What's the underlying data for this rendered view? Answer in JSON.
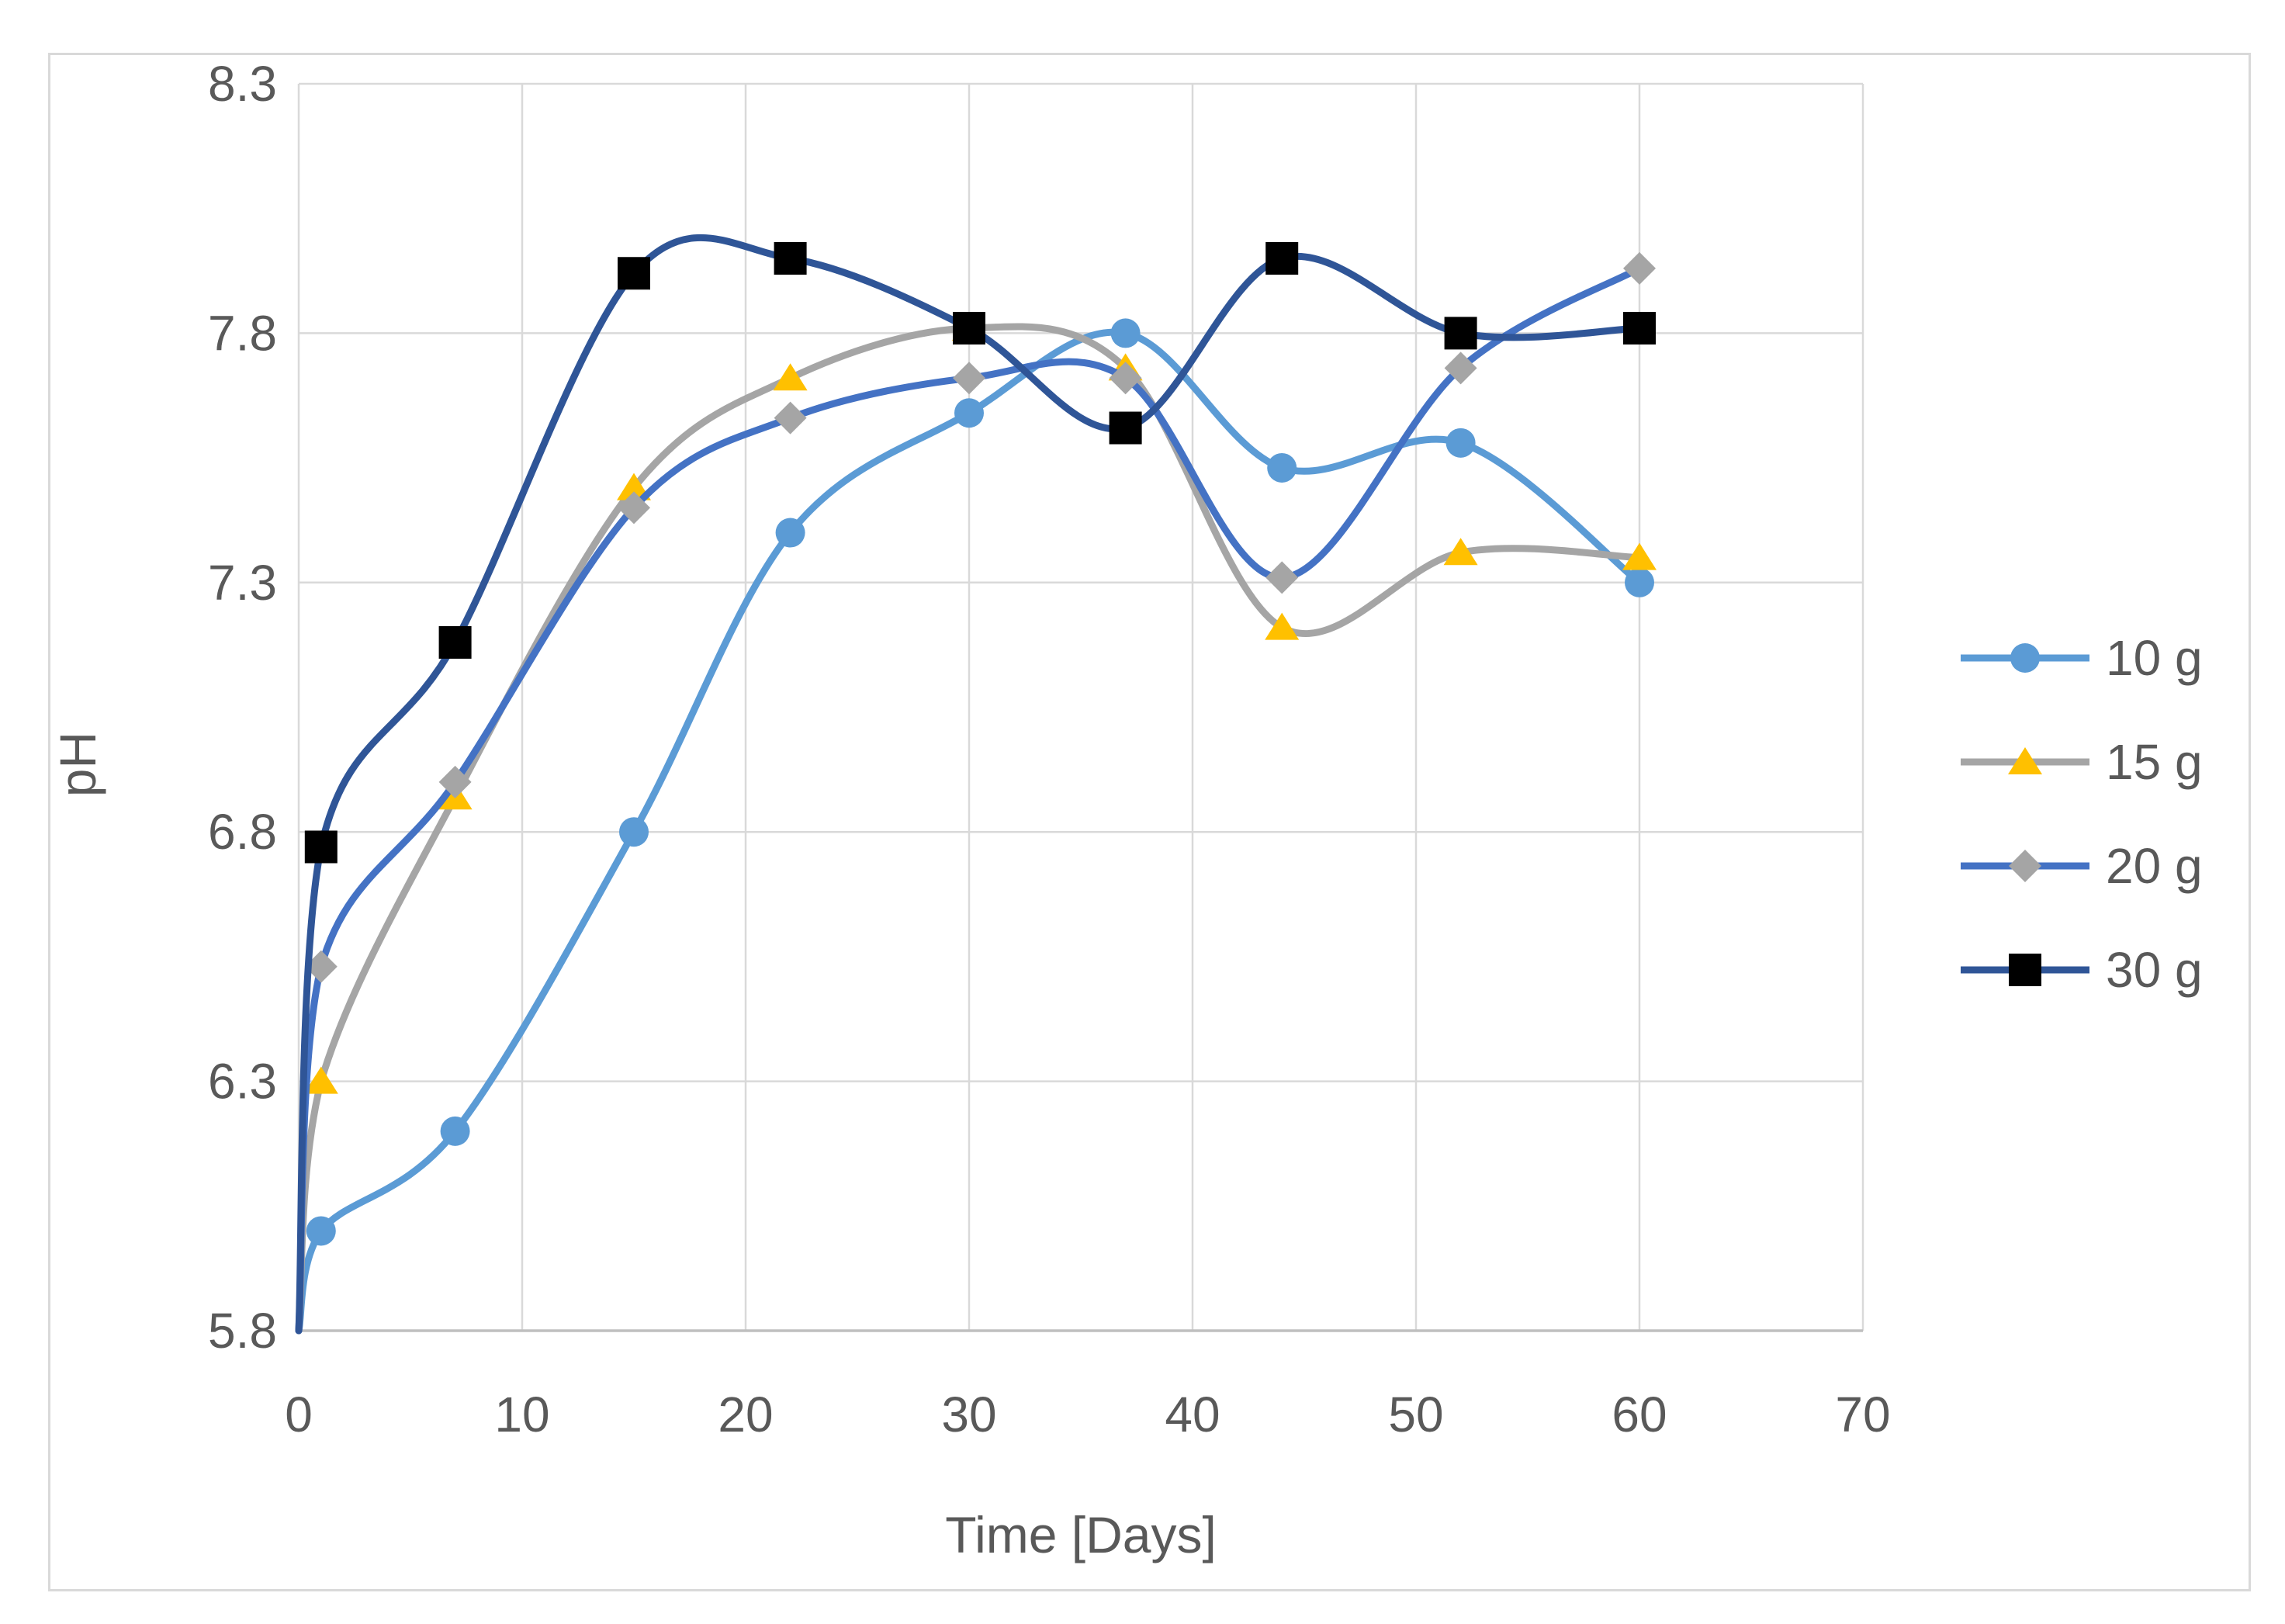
{
  "chart_data": {
    "type": "line",
    "title": "",
    "xlabel": "Time [Days]",
    "ylabel": "pH",
    "x": [
      0,
      1,
      7,
      15,
      22,
      30,
      37,
      44,
      52,
      60
    ],
    "series": [
      {
        "name": "10 g",
        "line_color": "#5B9BD5",
        "marker": "circle",
        "marker_color": "#5B9BD5",
        "values": [
          5.8,
          6.0,
          6.2,
          6.8,
          7.4,
          7.64,
          7.8,
          7.53,
          7.58,
          7.3
        ]
      },
      {
        "name": "15 g",
        "line_color": "#A5A5A5",
        "marker": "triangle",
        "marker_color": "#FFC000",
        "values": [
          5.8,
          6.3,
          6.87,
          7.49,
          7.71,
          7.81,
          7.73,
          7.21,
          7.36,
          7.35
        ]
      },
      {
        "name": "20 g",
        "line_color": "#4472C4",
        "marker": "diamond",
        "marker_color": "#A5A5A5",
        "values": [
          5.8,
          6.53,
          6.9,
          7.45,
          7.63,
          7.71,
          7.71,
          7.31,
          7.73,
          7.93
        ]
      },
      {
        "name": "30 g",
        "line_color": "#2F5597",
        "marker": "square",
        "marker_color": "#000000",
        "values": [
          5.8,
          6.77,
          7.18,
          7.92,
          7.95,
          7.81,
          7.61,
          7.95,
          7.8,
          7.81
        ]
      }
    ],
    "xlim": [
      0,
      70
    ],
    "ylim": [
      5.8,
      8.3
    ],
    "x_ticks": [
      "0",
      "10",
      "20",
      "30",
      "40",
      "50",
      "60",
      "70"
    ],
    "y_ticks": [
      "5.8",
      "6.3",
      "6.8",
      "7.3",
      "7.8",
      "8.3"
    ],
    "grid": true,
    "smooth": true,
    "legend_position": "right"
  },
  "styles": {
    "grid_color": "#D9D9D9",
    "axis_line_color": "#BFBFBF",
    "tick_label_color": "#595959",
    "legend_text_color": "#595959",
    "frame_border_color": "#D9D9D9",
    "background": "#FFFFFF"
  }
}
